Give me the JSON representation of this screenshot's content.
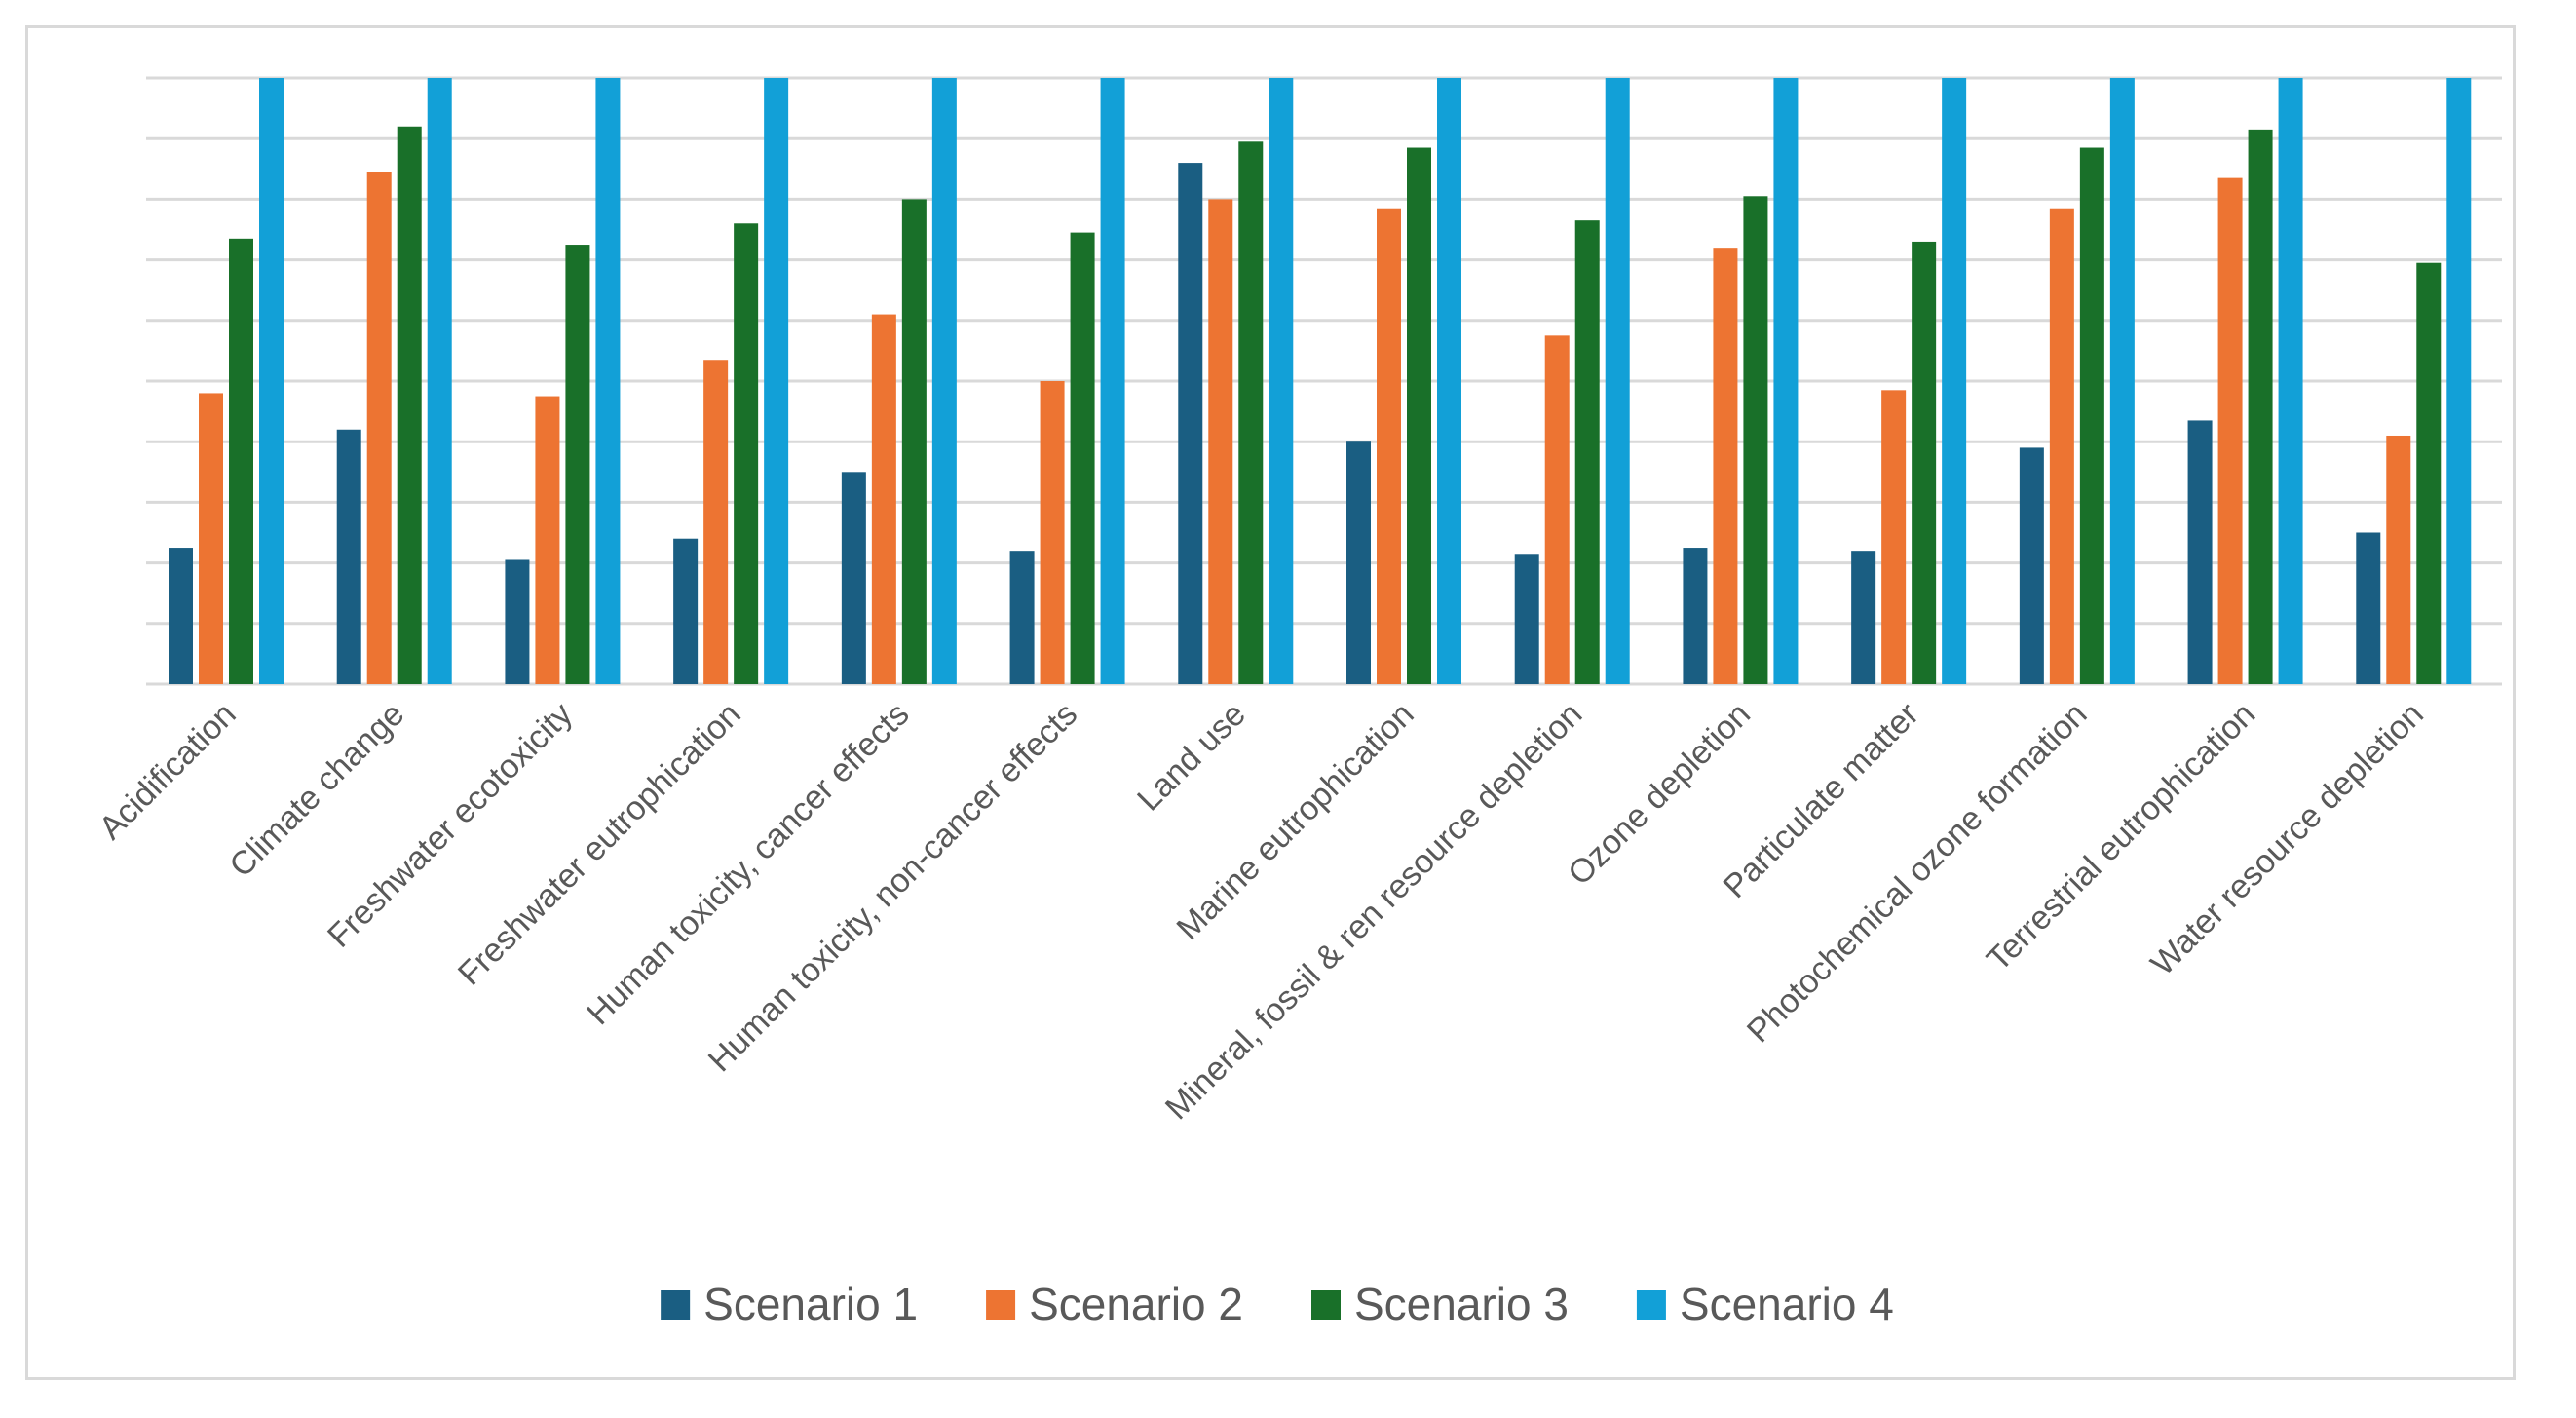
{
  "chart_data": {
    "type": "bar",
    "title": "",
    "xlabel": "",
    "ylabel": "",
    "ylim": [
      0,
      100
    ],
    "grid": true,
    "legend_position": "bottom",
    "categories": [
      "Acidification",
      "Climate change",
      "Freshwater ecotoxicity",
      "Freshwater eutrophication",
      "Human toxicity, cancer effects",
      "Human toxicity, non-cancer effects",
      "Land use",
      "Marine eutrophication",
      "Mineral, fossil & ren resource depletion",
      "Ozone depletion",
      "Particulate matter",
      "Photochemical ozone formation",
      "Terrestrial eutrophication",
      "Water resource depletion"
    ],
    "series": [
      {
        "name": "Scenario 1",
        "color": "#1a5e82",
        "values": [
          22.5,
          42,
          20.5,
          24,
          35,
          22,
          86,
          40,
          21.5,
          22.5,
          22,
          39,
          43.5,
          25
        ]
      },
      {
        "name": "Scenario 2",
        "color": "#ed7432",
        "values": [
          48,
          84.5,
          47.5,
          53.5,
          61,
          50,
          80,
          78.5,
          57.5,
          72,
          48.5,
          78.5,
          83.5,
          41
        ]
      },
      {
        "name": "Scenario 3",
        "color": "#197029",
        "values": [
          73.5,
          92,
          72.5,
          76,
          80,
          74.5,
          89.5,
          88.5,
          76.5,
          80.5,
          73,
          88.5,
          91.5,
          69.5
        ]
      },
      {
        "name": "Scenario 4",
        "color": "#12a0d7",
        "values": [
          100,
          100,
          100,
          100,
          100,
          100,
          100,
          100,
          100,
          100,
          100,
          100,
          100,
          100
        ]
      }
    ]
  },
  "colors": {
    "grid": "#d9d9d9",
    "axis_text": "#595959",
    "border": "#d9d9d9"
  }
}
